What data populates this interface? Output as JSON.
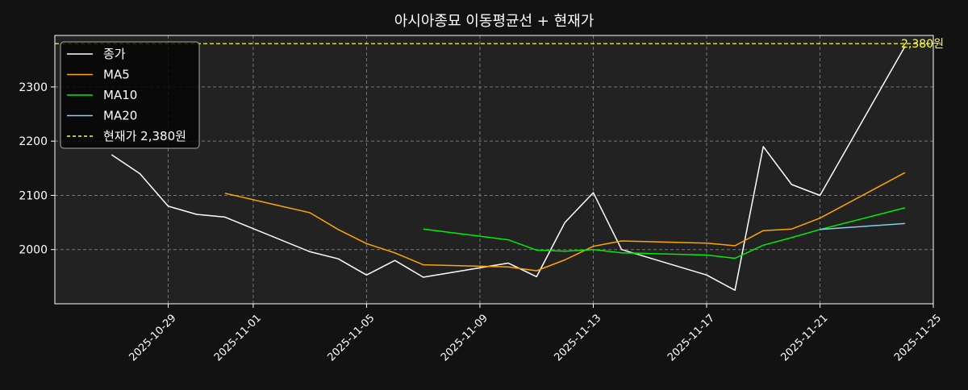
{
  "chart_data": {
    "type": "line",
    "title": "아시아종묘 이동평균선 + 현재가",
    "xlabel": "",
    "ylabel": "",
    "x_ticks": [
      "2025-10-29",
      "2025-11-01",
      "2025-11-05",
      "2025-11-09",
      "2025-11-13",
      "2025-11-17",
      "2025-11-21",
      "2025-11-25"
    ],
    "y_ticks": [
      2000,
      2100,
      2200,
      2300
    ],
    "xlim": [
      "2025-10-25",
      "2025-11-25"
    ],
    "ylim": [
      1900,
      2395
    ],
    "grid": true,
    "legend_position": "top-left",
    "series": [
      {
        "name": "종가",
        "color": "#ffffff",
        "points": [
          [
            "2025-10-27",
            2175
          ],
          [
            "2025-10-28",
            2140
          ],
          [
            "2025-10-29",
            2080
          ],
          [
            "2025-10-30",
            2065
          ],
          [
            "2025-10-31",
            2060
          ],
          [
            "2025-11-03",
            1996
          ],
          [
            "2025-11-04",
            1983
          ],
          [
            "2025-11-05",
            1953
          ],
          [
            "2025-11-06",
            1980
          ],
          [
            "2025-11-07",
            1949
          ],
          [
            "2025-11-10",
            1975
          ],
          [
            "2025-11-11",
            1950
          ],
          [
            "2025-11-12",
            2050
          ],
          [
            "2025-11-13",
            2105
          ],
          [
            "2025-11-14",
            2000
          ],
          [
            "2025-11-17",
            1953
          ],
          [
            "2025-11-18",
            1925
          ],
          [
            "2025-11-19",
            2190
          ],
          [
            "2025-11-20",
            2120
          ],
          [
            "2025-11-21",
            2100
          ],
          [
            "2025-11-24",
            2375
          ]
        ]
      },
      {
        "name": "MA5",
        "color": "#ffa500",
        "points": [
          [
            "2025-10-31",
            2104
          ],
          [
            "2025-11-03",
            2068
          ],
          [
            "2025-11-04",
            2037
          ],
          [
            "2025-11-05",
            2011
          ],
          [
            "2025-11-06",
            1994
          ],
          [
            "2025-11-07",
            1972
          ],
          [
            "2025-11-10",
            1968
          ],
          [
            "2025-11-11",
            1961
          ],
          [
            "2025-11-12",
            1981
          ],
          [
            "2025-11-13",
            2006
          ],
          [
            "2025-11-14",
            2016
          ],
          [
            "2025-11-17",
            2012
          ],
          [
            "2025-11-18",
            2007
          ],
          [
            "2025-11-19",
            2035
          ],
          [
            "2025-11-20",
            2038
          ],
          [
            "2025-11-21",
            2058
          ],
          [
            "2025-11-24",
            2142
          ]
        ]
      },
      {
        "name": "MA10",
        "color": "#00ee00",
        "points": [
          [
            "2025-11-07",
            2038
          ],
          [
            "2025-11-10",
            2018
          ],
          [
            "2025-11-11",
            1999
          ],
          [
            "2025-11-12",
            1997
          ],
          [
            "2025-11-13",
            2000
          ],
          [
            "2025-11-14",
            1994
          ],
          [
            "2025-11-17",
            1990
          ],
          [
            "2025-11-18",
            1984
          ],
          [
            "2025-11-19",
            2008
          ],
          [
            "2025-11-20",
            2022
          ],
          [
            "2025-11-21",
            2037
          ],
          [
            "2025-11-24",
            2077
          ]
        ]
      },
      {
        "name": "MA20",
        "color": "#87ceeb",
        "points": [
          [
            "2025-11-21",
            2037
          ],
          [
            "2025-11-24",
            2048
          ]
        ]
      }
    ],
    "reference_line": {
      "name": "현재가 2,380원",
      "label": "2,380원",
      "value": 2380,
      "color": "#ffff33",
      "style": "dashed"
    }
  },
  "colors": {
    "figure_bg": "#121212",
    "axes_bg": "#222222",
    "grid": "#777777",
    "text": "#ffffff",
    "spine": "#ffffff"
  }
}
